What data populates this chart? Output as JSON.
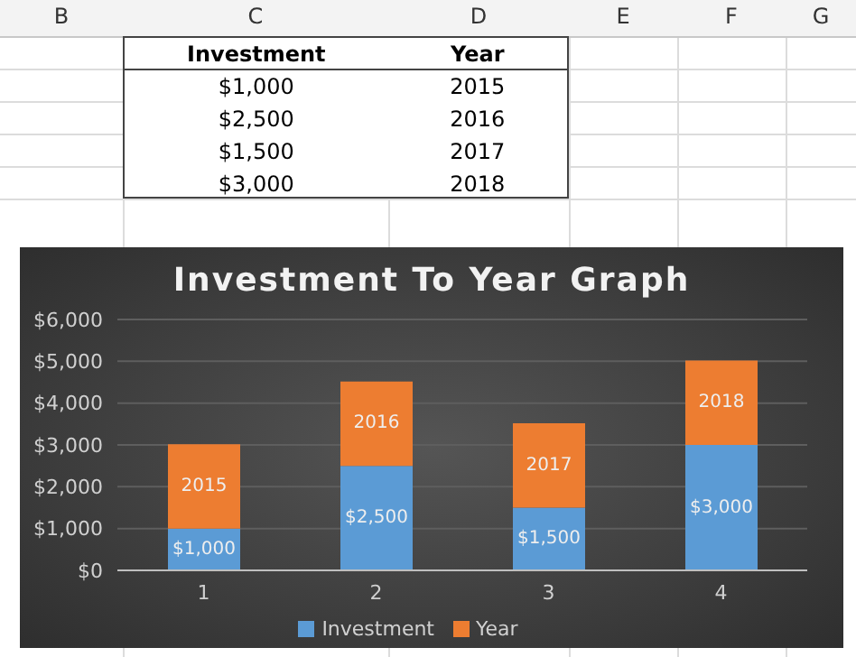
{
  "chart_data": {
    "type": "bar",
    "title": "Investment To Year Graph",
    "categories": [
      "1",
      "2",
      "3",
      "4"
    ],
    "series": [
      {
        "name": "Investment",
        "color": "#5b9bd5",
        "values": [
          1000,
          2500,
          1500,
          3000
        ],
        "value_labels": [
          "$1,000",
          "$2,500",
          "$1,500",
          "$3,000"
        ]
      },
      {
        "name": "Year",
        "color": "#ed7d31",
        "values": [
          2015,
          2016,
          2017,
          2018
        ],
        "value_labels": [
          "2015",
          "2016",
          "2017",
          "2018"
        ]
      }
    ],
    "stacked": true,
    "ylim": [
      0,
      6000
    ],
    "yticks": [
      {
        "value": 0,
        "label": "$0"
      },
      {
        "value": 1000,
        "label": "$1,000"
      },
      {
        "value": 2000,
        "label": "$2,000"
      },
      {
        "value": 3000,
        "label": "$3,000"
      },
      {
        "value": 4000,
        "label": "$4,000"
      },
      {
        "value": 5000,
        "label": "$5,000"
      },
      {
        "value": 6000,
        "label": "$6,000"
      }
    ],
    "grid": "y",
    "legend": "bottom",
    "annotations": [
      "B",
      "C",
      "D",
      "E",
      "F",
      "G"
    ]
  }
}
